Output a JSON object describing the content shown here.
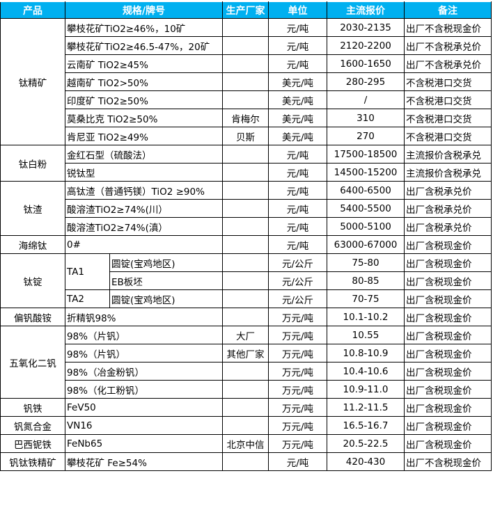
{
  "header": {
    "product": "产品",
    "spec": "规格/牌号",
    "maker": "生产厂家",
    "unit": "单位",
    "price": "主流报价",
    "note": "备注"
  },
  "header_color": "#00b0f0",
  "groups": [
    {
      "product": "钛精矿",
      "rows": [
        {
          "spec": "攀枝花矿TiO2≥46%，10矿",
          "maker": "",
          "unit": "元/吨",
          "price": "2030-2135",
          "note": "出厂不含税现金价"
        },
        {
          "spec": "攀枝花矿TiO2≥46.5-47%，20矿",
          "maker": "",
          "unit": "元/吨",
          "price": "2120-2200",
          "note": "出厂不含税承兑价"
        },
        {
          "spec": "云南矿 TiO2≥45%",
          "maker": "",
          "unit": "元/吨",
          "price": "1600-1650",
          "note": "出厂不含税承兑价"
        },
        {
          "spec": "越南矿 TiO2>50%",
          "maker": "",
          "unit": "美元/吨",
          "price": "280-295",
          "note": "不含税港口交货"
        },
        {
          "spec": "印度矿 TiO2≥50%",
          "maker": "",
          "unit": "美元/吨",
          "price": "/",
          "note": "不含税港口交货"
        },
        {
          "spec": "莫桑比克 TiO2≥50%",
          "maker": "肯梅尔",
          "unit": "美元/吨",
          "price": "310",
          "note": "不含税港口交货"
        },
        {
          "spec": "肯尼亚 TiO2≥49%",
          "maker": "贝斯",
          "unit": "美元/吨",
          "price": "270",
          "note": "不含税港口交货"
        }
      ]
    },
    {
      "product": "钛白粉",
      "rows": [
        {
          "spec": "金红石型（硫酸法）",
          "maker": "",
          "unit": "元/吨",
          "price": "17500-18500",
          "note": "主流报价含税承兑"
        },
        {
          "spec": "锐钛型",
          "maker": "",
          "unit": "元/吨",
          "price": "14500-15200",
          "note": "主流报价含税承兑"
        }
      ]
    },
    {
      "product": "钛渣",
      "rows": [
        {
          "spec": "高钛渣（普通钙镁）TiO2 ≥90%",
          "maker": "",
          "unit": "元/吨",
          "price": "6400-6500",
          "note": "出厂含税承兑价"
        },
        {
          "spec": "酸溶渣TiO2≥74%(川）",
          "maker": "",
          "unit": "元/吨",
          "price": "5400-5500",
          "note": "出厂含税承兑价"
        },
        {
          "spec": "酸溶渣TiO2≥74%(滇）",
          "maker": "",
          "unit": "元/吨",
          "price": "5000-5100",
          "note": "出厂含税承兑价"
        }
      ]
    },
    {
      "product": "海绵钛",
      "rows": [
        {
          "spec": "0#",
          "maker": "",
          "unit": "元/吨",
          "price": "63000-67000",
          "note": "出厂含税现金价"
        }
      ]
    },
    {
      "product": "钛锭",
      "rows": [
        {
          "grade": "TA1",
          "grade_span": 2,
          "spec": "圆锭(宝鸡地区)",
          "maker": "",
          "unit": "元/公斤",
          "price": "75-80",
          "note": "出厂含税现金价"
        },
        {
          "spec": "EB板坯",
          "maker": "",
          "unit": "元/公斤",
          "price": "80-85",
          "note": "出厂含税现金价"
        },
        {
          "grade": "TA2",
          "grade_span": 1,
          "spec": "圆锭(宝鸡地区)",
          "maker": "",
          "unit": "元/公斤",
          "price": "70-75",
          "note": "出厂含税现金价"
        }
      ]
    },
    {
      "product": "偏钒酸铵",
      "rows": [
        {
          "spec": "折精钒98%",
          "maker": "",
          "unit": "万元/吨",
          "price": "10.1-10.2",
          "note": "出厂含税现金价"
        }
      ]
    },
    {
      "product": "五氧化二钒",
      "rows": [
        {
          "spec": "98%（片钒）",
          "maker": "大厂",
          "unit": "万元/吨",
          "price": "10.55",
          "note": "出厂含税现金价"
        },
        {
          "spec": "98%（片钒）",
          "maker": "其他厂家",
          "unit": "万元/吨",
          "price": "10.8-10.9",
          "note": "出厂含税现金价"
        },
        {
          "spec": "98%（冶金粉钒）",
          "maker": "",
          "unit": "万元/吨",
          "price": "10.4-10.6",
          "note": "出厂含税现金价"
        },
        {
          "spec": "98%（化工粉钒）",
          "maker": "",
          "unit": "万元/吨",
          "price": "10.9-11.0",
          "note": "出厂含税现金价"
        }
      ]
    },
    {
      "product": "钒铁",
      "rows": [
        {
          "spec": "FeV50",
          "maker": "",
          "unit": "万元/吨",
          "price": "11.2-11.5",
          "note": "出厂含税现金价"
        }
      ]
    },
    {
      "product": "钒氮合金",
      "rows": [
        {
          "spec": "VN16",
          "maker": "",
          "unit": "万元/吨",
          "price": "16.5-16.7",
          "note": "出厂含税现金价"
        }
      ]
    },
    {
      "product": "巴西铌铁",
      "rows": [
        {
          "spec": "FeNb65",
          "maker": "北京中信",
          "unit": "万元/吨",
          "price": "20.5-22.5",
          "note": "出厂含税现金价"
        }
      ]
    },
    {
      "product": "钒钛铁精矿",
      "rows": [
        {
          "spec": "攀枝花矿 Fe≥54%",
          "maker": "",
          "unit": "元/吨",
          "price": "420-430",
          "note": "出厂不含税现金价"
        }
      ]
    }
  ]
}
